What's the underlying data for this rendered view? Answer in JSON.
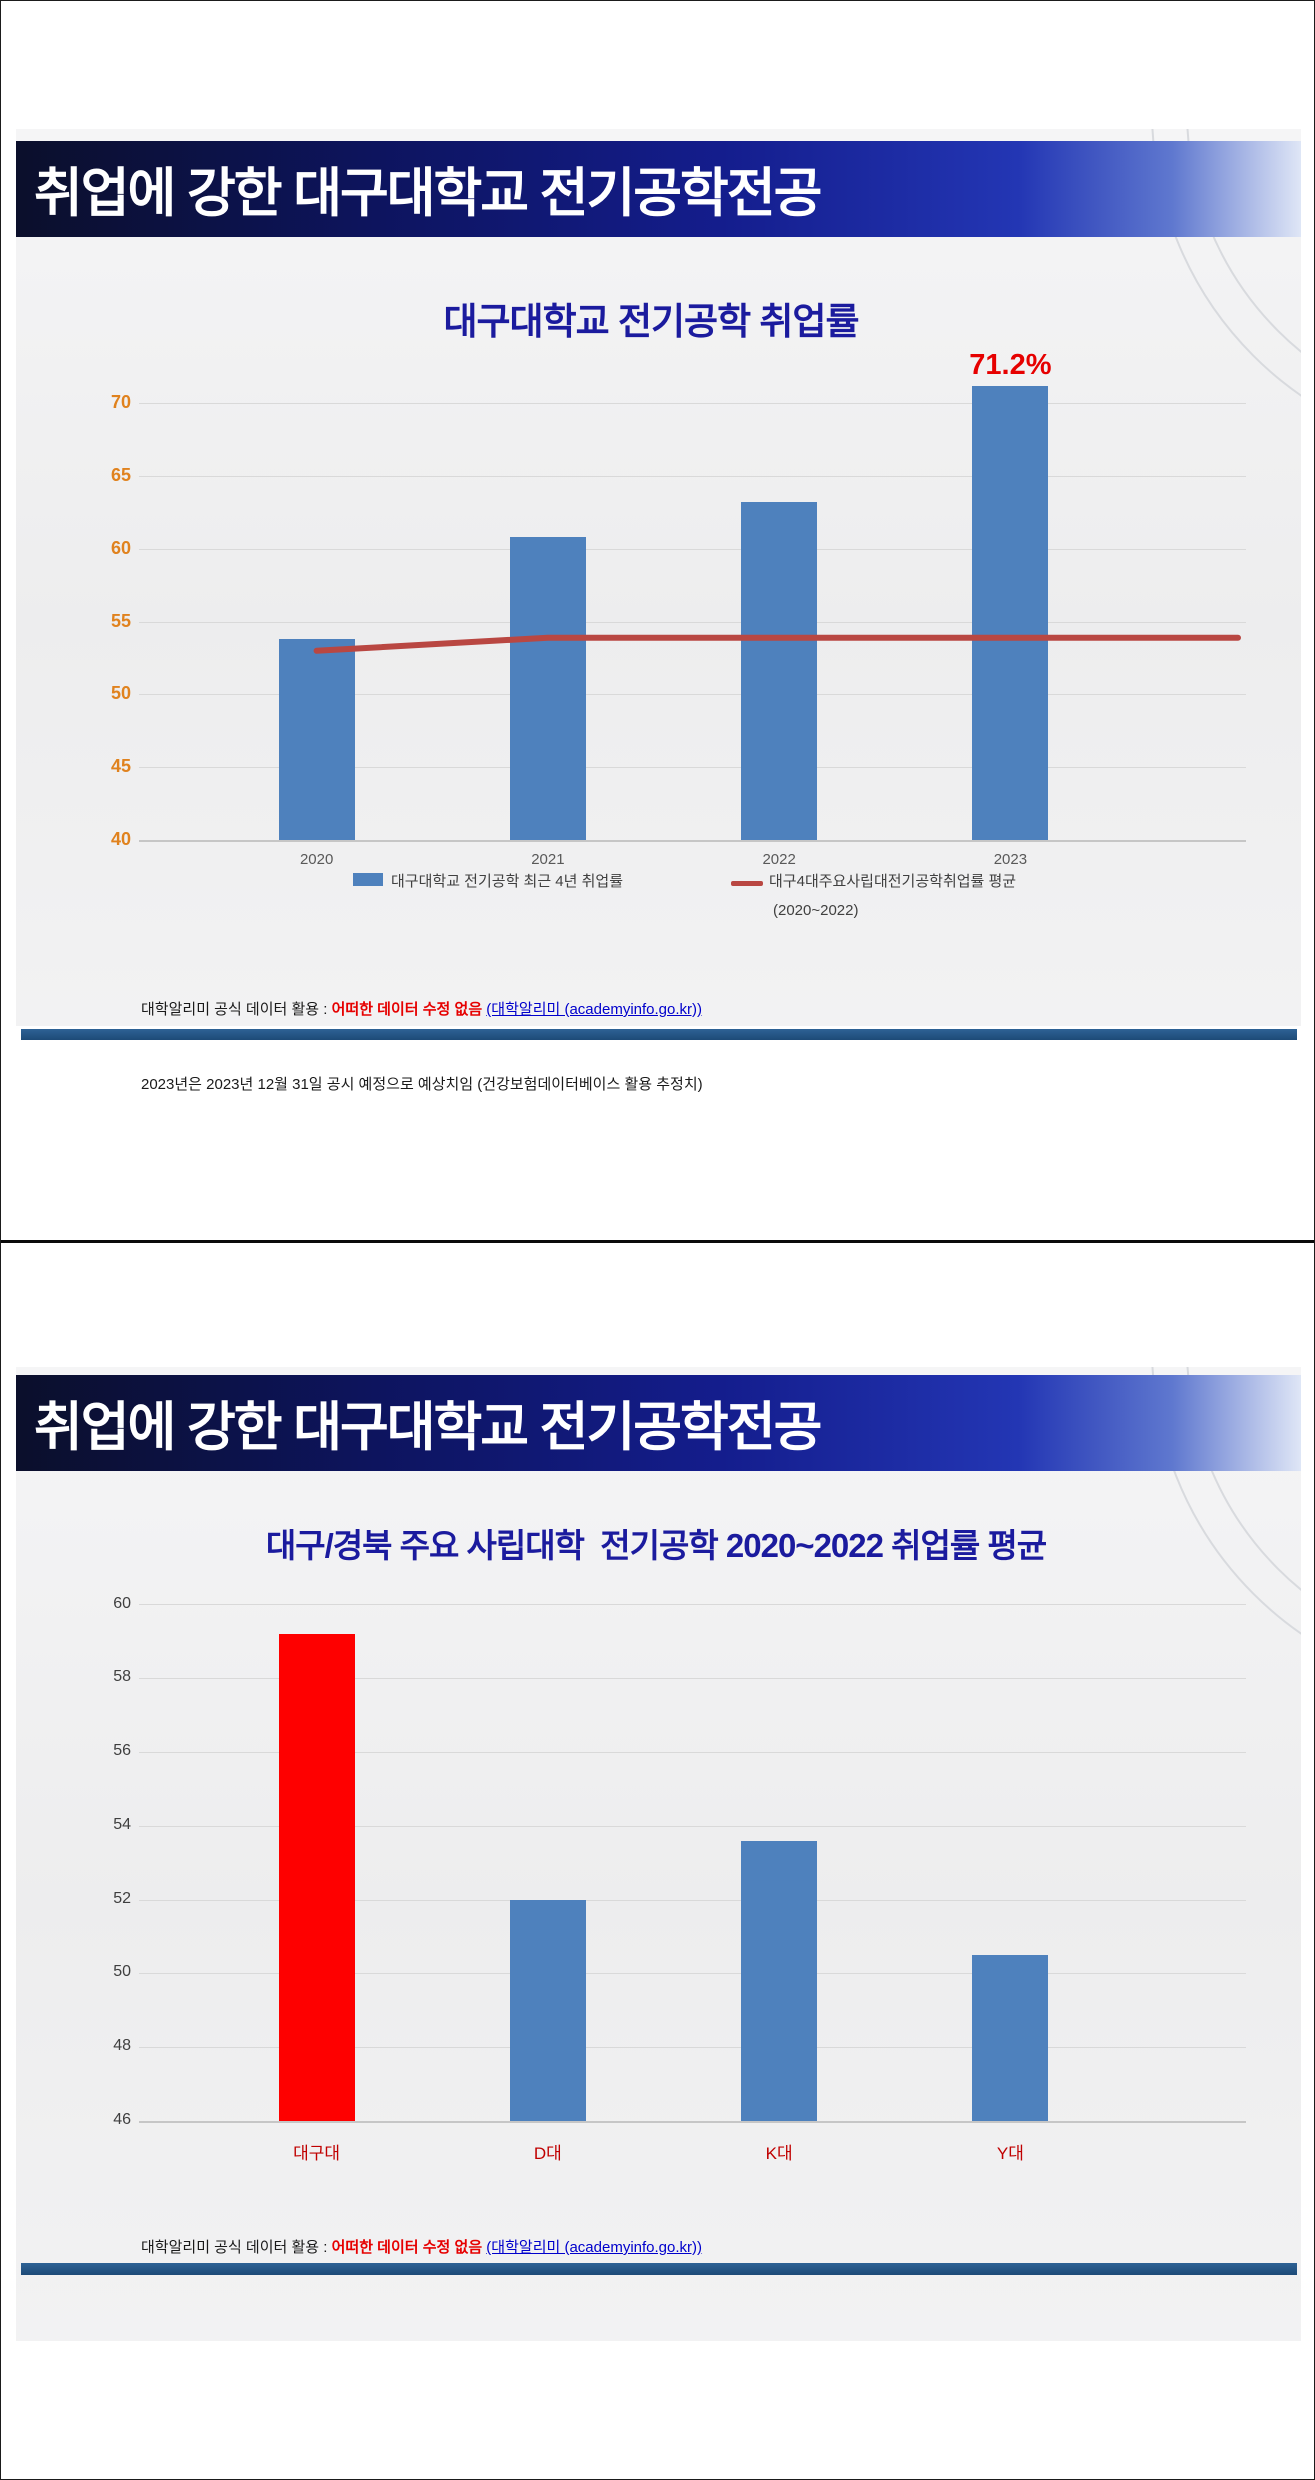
{
  "slides": [
    {
      "header_title": "취업에 강한 대구대학교 전기공학전공",
      "chart_title": "대구대학교 전기공학 취업률",
      "legend": {
        "bar_label": "대구대학교 전기공학 최근 4년 취업률",
        "line_label": "대구4대주요사립대전기공학취업률 평균",
        "line_label2": "(2020~2022)"
      },
      "footer": {
        "prefix": "대학알리미 공식 데이터 활용 : ",
        "red": "어떠한 데이터 수정 없음",
        "link": "(대학알리미 (academyinfo.go.kr))",
        "line2": "2023년은 2023년 12월 31일 공시 예정으로 예상치임 (건강보험데이터베이스 활용 추정치)"
      }
    },
    {
      "header_title": "취업에 강한 대구대학교 전기공학전공",
      "chart_title": "대구/경북 주요 사립대학  전기공학 2020~2022 취업률 평균",
      "footer": {
        "prefix": "대학알리미 공식 데이터 활용 : ",
        "red": "어떠한 데이터 수정 없음",
        "link": "(대학알리미 (academyinfo.go.kr))"
      }
    }
  ],
  "chart_data": [
    {
      "type": "bar+line",
      "title": "대구대학교 전기공학 취업률",
      "categories": [
        "2020",
        "2021",
        "2022",
        "2023"
      ],
      "series": [
        {
          "name": "대구대학교 전기공학 최근 4년 취업률",
          "type": "bar",
          "color": "#4e81bd",
          "values": [
            53.8,
            60.8,
            63.2,
            71.2
          ]
        },
        {
          "name": "대구4대주요사립대전기공학취업률 평균 (2020~2022)",
          "type": "line",
          "color": "#b94742",
          "values": [
            53.0,
            53.9,
            53.9,
            53.9
          ]
        }
      ],
      "ylim": [
        40,
        72.5
      ],
      "yticks": [
        40,
        45,
        50,
        55,
        60,
        65,
        70
      ],
      "ytick_color": "#e0821e",
      "xtick_color": "#595959",
      "grid": true,
      "legend_position": "bottom",
      "annotation": {
        "text": "71.2%",
        "category_index": 3,
        "color": "#e60000"
      }
    },
    {
      "type": "bar",
      "title": "대구/경북 주요 사립대학  전기공학 2020~2022 취업률 평균",
      "categories": [
        "대구대",
        "D대",
        "K대",
        "Y대"
      ],
      "values": [
        59.2,
        52.0,
        53.6,
        50.5
      ],
      "bar_colors": [
        "#fe0000",
        "#4e81bd",
        "#4e81bd",
        "#4e81bd"
      ],
      "ylim": [
        46,
        60.5
      ],
      "yticks": [
        46,
        48,
        50,
        52,
        54,
        56,
        58,
        60
      ],
      "ytick_color": "#3f3f3f",
      "xtick_color": "#c00000",
      "grid": true
    }
  ]
}
